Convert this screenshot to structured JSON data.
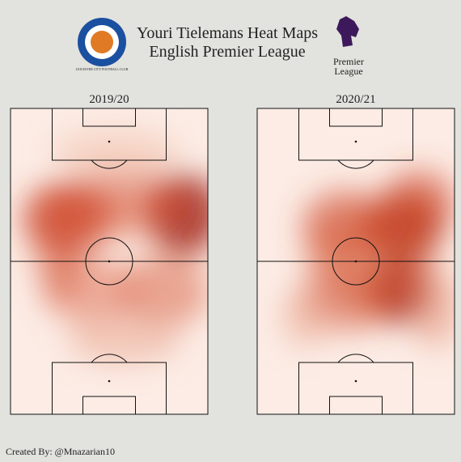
{
  "header": {
    "title": "Youri Tielemans Heat Maps",
    "subtitle": "English Premier League"
  },
  "logos": {
    "club": "LEICESTER CITY FOOTBALL CLUB",
    "league": [
      "Premier",
      "League"
    ]
  },
  "panels": [
    {
      "title": "2019/20"
    },
    {
      "title": "2020/21"
    }
  ],
  "footer": {
    "credit": "Created By: @Mnazarian10"
  }
}
